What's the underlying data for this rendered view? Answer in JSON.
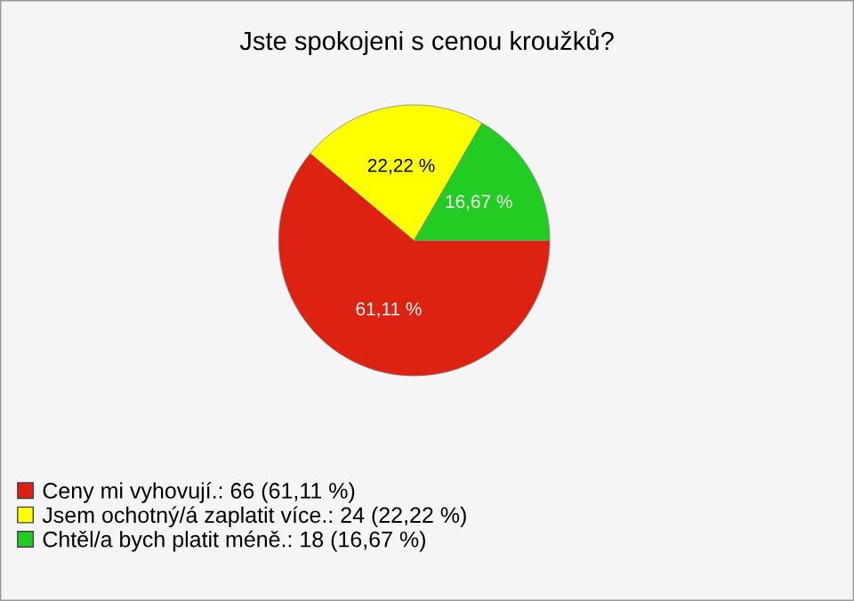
{
  "chart_data": {
    "type": "pie",
    "title": "Jste spokojeni s cenou kroužků?",
    "categories": [
      "Ceny mi vyhovují.: 66 (61,11 %)",
      "Jsem ochotný/á zaplatit více.: 24 (22,22 %)",
      "Chtěl/a bych platit méně.: 18 (16,67 %)"
    ],
    "values": [
      61.11,
      22.22,
      16.67
    ],
    "value_labels": [
      "61,11 %",
      "22,22 %",
      "16,67 %"
    ],
    "colors": [
      "#dd2211",
      "#ffff00",
      "#22cc22"
    ],
    "legend": "bottom left"
  }
}
